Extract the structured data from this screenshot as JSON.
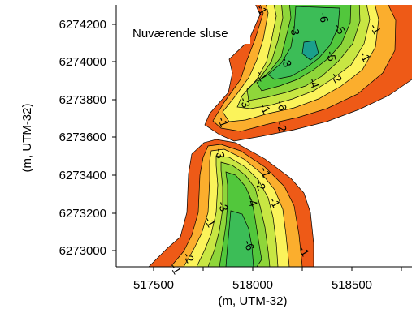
{
  "plot": {
    "annotation": "Nuværende sluse",
    "xlabel": "(m, UTM-32)",
    "ylabel": "(m, UTM-32)",
    "x_ticks": [
      "517500",
      "518000",
      "518500"
    ],
    "y_ticks": [
      "6274200",
      "6274000",
      "6273800",
      "6273600",
      "6273400",
      "6273200",
      "6273000"
    ]
  },
  "colors": {
    "band_deep": "#1aa08c",
    "band_6": "#3cbd57",
    "band_5": "#52c73c",
    "band_4": "#8fd63a",
    "band_3": "#c8e643",
    "band_2": "#fbf35a",
    "band_1": "#fbae2d",
    "band_0": "#ee5a17",
    "frame": "#000000"
  },
  "contour_labels": [
    {
      "text": "-1"
    },
    {
      "text": "-3"
    },
    {
      "text": "-6"
    },
    {
      "text": "-5"
    },
    {
      "text": "-1"
    },
    {
      "text": "-5"
    },
    {
      "text": "-1"
    },
    {
      "text": "-3"
    },
    {
      "text": "-1"
    },
    {
      "text": "-4"
    },
    {
      "text": "-2"
    },
    {
      "text": "-3"
    },
    {
      "text": "-6"
    },
    {
      "text": "-1"
    },
    {
      "text": "-2"
    },
    {
      "text": "-1"
    },
    {
      "text": "-3"
    },
    {
      "text": "-1"
    },
    {
      "text": "-2"
    },
    {
      "text": "-4"
    },
    {
      "text": "-1"
    },
    {
      "text": "-3"
    },
    {
      "text": "-1"
    },
    {
      "text": "-6"
    },
    {
      "text": "-2"
    },
    {
      "text": "-1"
    },
    {
      "text": "-1"
    }
  ]
}
